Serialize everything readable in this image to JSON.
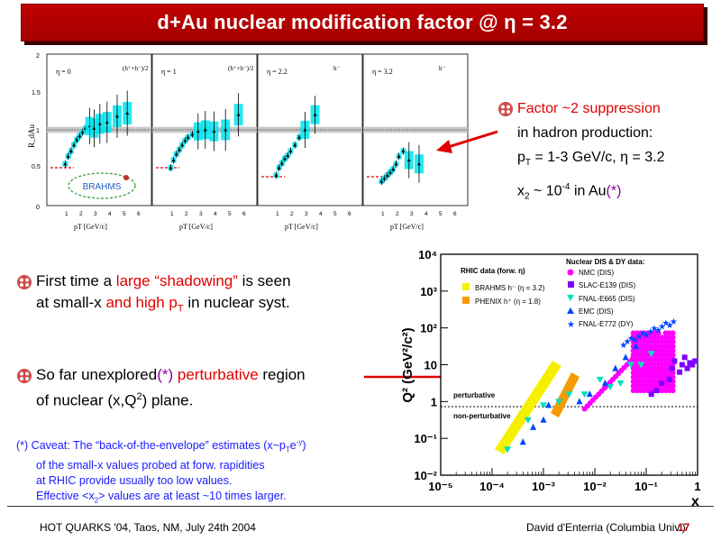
{
  "slide": {
    "title": "d+Au nuclear modification factor @ η = 3.2",
    "footer_left": "HOT QUARKS '04, Taos, NM, July 24th 2004",
    "footer_right": "David d'Enterria (Columbia Univ.)",
    "page_number": "17"
  },
  "right_note": {
    "line1": "Factor ~2 suppression",
    "line2": "in hadron production:",
    "line3_prefix": "p",
    "line3_sub": "T",
    "line3_suffix": " = 1-3 GeV/c, η = 3.2",
    "line4_prefix": "x",
    "line4_sub": "2",
    "line4_mid": " ~ 10",
    "line4_sup": "-4",
    "line4_suffix": " in Au",
    "line4_star": "(*)"
  },
  "bullet1": {
    "part1": "First time a ",
    "part2": "large “shadowing”",
    "part3": " is seen",
    "part4": "at small-x ",
    "part5": "and high p",
    "part5_sub": "T",
    "part6": " in nuclear syst."
  },
  "bullet2": {
    "part1": "So far unexplored",
    "part2": "(*)",
    "part3": " perturbative",
    "part4": " region",
    "part5": "of nuclear (x,Q",
    "part5_sup": "2",
    "part6": ") plane."
  },
  "caveat": {
    "line1a": "(*) Caveat: The “back-of-the-envelope” estimates (x~p",
    "line1_sub": "T",
    "line1b": "e",
    "line1_sup": "-y",
    "line1c": ")",
    "line2": "of the small-x values probed at forw. rapidities",
    "line3": "at RHIC provide usually too low values.",
    "line4a": "Effective <x",
    "line4_sub": "2",
    "line4b": "> values are at least ~10 times larger."
  },
  "top_figure": {
    "panels": [
      {
        "eta": "η = 0",
        "species": "(h⁺+h⁻)/2"
      },
      {
        "eta": "η = 1",
        "species": "(h⁺+h⁻)/2"
      },
      {
        "eta": "η = 2.2",
        "species": "h⁻"
      },
      {
        "eta": "η = 3.2",
        "species": "h⁻"
      }
    ],
    "ylabel": "R_dAu",
    "xlabel": "pT [GeV/c]",
    "y_ticks": [
      "0",
      "0.5",
      "1",
      "1.5",
      "2"
    ],
    "x_ticks": [
      "1",
      "2",
      "3",
      "4",
      "5",
      "6"
    ],
    "logo": "BRAHMS"
  },
  "bottom_figure": {
    "ylabel": "Q² (GeV²/c²)",
    "xlabel": "x",
    "rhic_title": "RHIC data (forw. η)",
    "rhic_items": [
      "BRAHMS h⁻ (η = 3.2)",
      "PHENIX h⁺ (η = 1.8)"
    ],
    "nuclear_title": "Nuclear DIS & DY data:",
    "nuclear_items": [
      "NMC (DIS)",
      "SLAC-E139 (DIS)",
      "FNAL-E665 (DIS)",
      "EMC (DIS)",
      "FNAL-E772 (DY)"
    ],
    "perturbative": "perturbative",
    "non_perturbative": "non-perturbative",
    "x_ticks": [
      "10⁻⁵",
      "10⁻⁴",
      "10⁻³",
      "10⁻²",
      "10⁻¹",
      "1"
    ],
    "y_ticks": [
      "10⁴",
      "10³",
      "10²",
      "10",
      "1",
      "10⁻¹",
      "10⁻²"
    ],
    "colors": {
      "nmc": "#ff00ff",
      "slac": "#8000ff",
      "e665": "#00e0c0",
      "emc": "#0044ff",
      "e772": "#0044ff",
      "brahms": "#f5ef00",
      "phenix": "#f59a00"
    }
  }
}
